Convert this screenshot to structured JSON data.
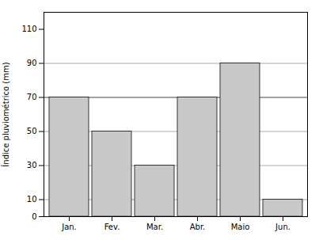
{
  "chart_data": {
    "type": "bar",
    "categories": [
      "Jan.",
      "Fev.",
      "Mar.",
      "Abr.",
      "Maio",
      "Jun."
    ],
    "values": [
      70,
      50,
      30,
      70,
      90,
      10
    ],
    "color": "#c8c8c8",
    "ylabel": "Índice pluviométrico (mm)",
    "ylim": [
      0,
      120
    ],
    "yticks": [
      0,
      10,
      30,
      50,
      70,
      90,
      110
    ],
    "reference_lines": [
      {
        "y": 10,
        "color": "#aaaaaa",
        "line_style": "dashed"
      },
      {
        "y": 30,
        "color": "#aaaaaa",
        "line_style": "dashed"
      },
      {
        "y": 50,
        "color": "#aaaaaa",
        "line_style": "dashed"
      },
      {
        "y": 90,
        "color": "#aaaaaa",
        "line_style": "dashed"
      },
      {
        "y": 70,
        "color": "#444444",
        "line_style": "dashed"
      }
    ],
    "grid": false
  }
}
